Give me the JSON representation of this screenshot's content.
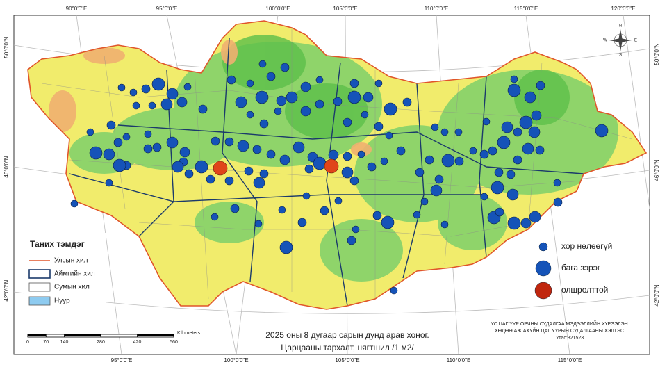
{
  "graticule": {
    "top": [
      "90°0'0\"E",
      "95°0'0\"E",
      "100°0'0\"E",
      "105°0'0\"E",
      "110°0'0\"E",
      "115°0'0\"E",
      "120°0'0\"E"
    ],
    "bottom": [
      "95°0'0\"E",
      "100°0'0\"E",
      "105°0'0\"E",
      "110°0'0\"E",
      "115°0'0\"E"
    ],
    "left": [
      "50°0'0\"N",
      "46°0'0\"N",
      "42°0'0\"N"
    ],
    "right": [
      "50°0'0\"N",
      "46°0'0\"N",
      "42°0'0\"N"
    ]
  },
  "compass": [
    "N",
    "E",
    "S",
    "W"
  ],
  "legend": {
    "title": "Таних тэмдэг",
    "items": [
      "Улсын хил",
      "Аймгийн хил",
      "Сумын хил",
      "Нуур"
    ]
  },
  "density_legend": [
    "хор нөлөөгүй",
    "бага зэрэг",
    "олшролттой"
  ],
  "scale_bar": {
    "ticks": [
      0,
      70,
      140,
      280,
      420,
      560
    ],
    "unit": "Kilometers"
  },
  "title": [
    "2025 оны 8 дугаар сарын дунд арав хоног.",
    "Царцааны тархалт, нягтшил /1 м2/"
  ],
  "credit": [
    "УС ЦАГ УУР ОРЧНЫ СУДАЛГАА МЭДЭЭЛЛИЙН ХҮРЭЭЛЭН",
    "ХӨДӨӨ АЖ АХУЙН ЦАГ УУРЫН СУДАЛГААНЫ ХЭЛТЭС",
    "Утас:321523"
  ]
}
